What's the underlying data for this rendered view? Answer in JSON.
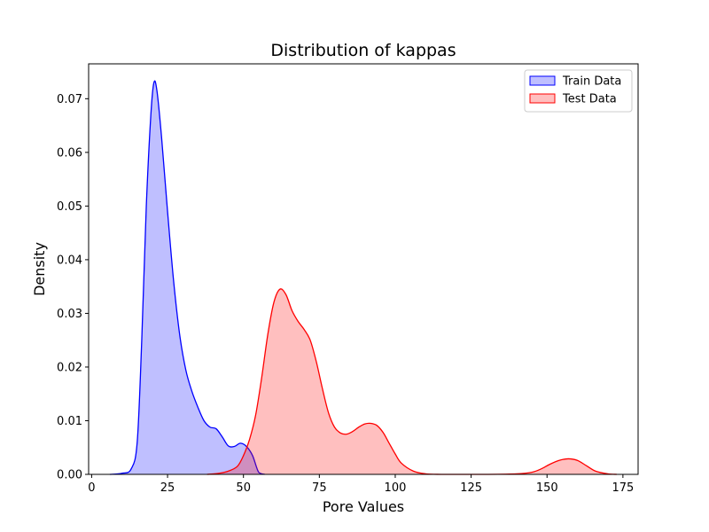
{
  "chart_data": {
    "type": "area",
    "title": "Distribution of kappas",
    "xlabel": "Pore Values",
    "ylabel": "Density",
    "xlim": [
      -1,
      180
    ],
    "ylim": [
      0,
      0.0765
    ],
    "xticks": [
      0,
      25,
      50,
      75,
      100,
      125,
      150,
      175
    ],
    "yticks": [
      0.0,
      0.01,
      0.02,
      0.03,
      0.04,
      0.05,
      0.06,
      0.07
    ],
    "ytick_labels": [
      "0.00",
      "0.01",
      "0.02",
      "0.03",
      "0.04",
      "0.05",
      "0.06",
      "0.07"
    ],
    "grid": false,
    "legend_position": "top-right",
    "series": [
      {
        "name": "Train Data",
        "color": "#0000ff",
        "fill": "#0000ff",
        "fill_opacity": 0.25,
        "x": [
          6,
          10,
          13,
          15,
          16.5,
          18,
          19.5,
          20.5,
          21.5,
          23,
          25,
          27,
          29,
          31,
          33,
          35,
          37,
          39,
          41,
          43,
          45,
          47,
          49,
          51,
          53,
          55,
          57
        ],
        "y": [
          0,
          0.0002,
          0.001,
          0.006,
          0.025,
          0.05,
          0.067,
          0.073,
          0.0715,
          0.063,
          0.049,
          0.036,
          0.026,
          0.0195,
          0.0155,
          0.0125,
          0.01,
          0.0088,
          0.0085,
          0.007,
          0.0053,
          0.0052,
          0.0058,
          0.0052,
          0.0035,
          0.0004,
          0
        ]
      },
      {
        "name": "Test Data",
        "color": "#ff0000",
        "fill": "#ff0000",
        "fill_opacity": 0.25,
        "x": [
          38,
          42,
          45,
          48,
          50,
          52,
          54,
          56,
          58,
          60,
          62,
          64,
          66,
          68,
          70,
          72,
          74,
          76,
          78,
          80,
          82,
          84,
          86,
          88,
          90,
          92,
          94,
          96,
          98,
          100,
          102,
          106,
          110,
          115,
          120,
          130,
          140,
          145,
          148,
          151,
          154,
          157,
          160,
          163,
          166,
          170,
          173
        ],
        "y": [
          0,
          0.0002,
          0.0006,
          0.0015,
          0.0035,
          0.0065,
          0.011,
          0.018,
          0.026,
          0.032,
          0.0345,
          0.0335,
          0.0305,
          0.0285,
          0.027,
          0.025,
          0.021,
          0.016,
          0.0115,
          0.0088,
          0.0077,
          0.0075,
          0.008,
          0.0088,
          0.0094,
          0.0095,
          0.0091,
          0.0078,
          0.0058,
          0.0038,
          0.0021,
          0.0006,
          0.0001,
          0,
          0,
          0,
          0.0001,
          0.0004,
          0.001,
          0.0019,
          0.0026,
          0.0029,
          0.0026,
          0.0016,
          0.0006,
          0.0001,
          0
        ]
      }
    ]
  }
}
